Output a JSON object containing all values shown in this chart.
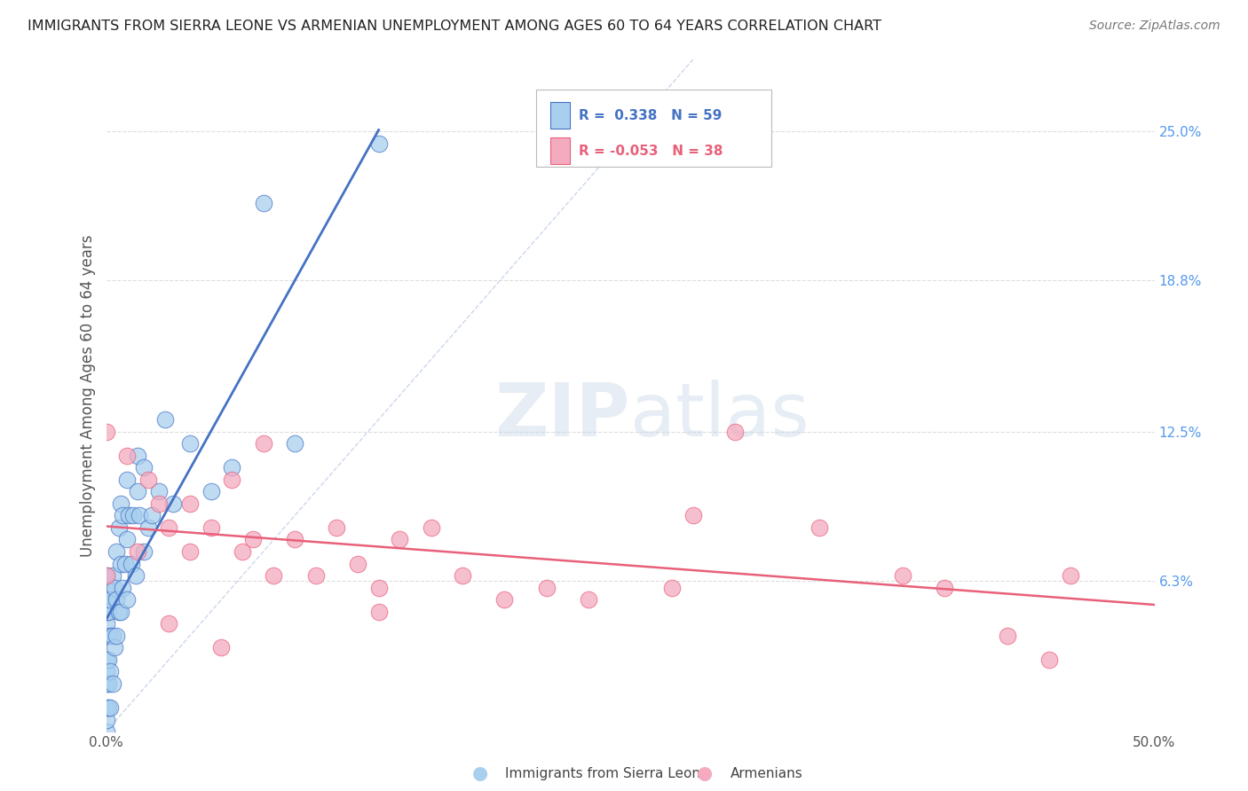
{
  "title": "IMMIGRANTS FROM SIERRA LEONE VS ARMENIAN UNEMPLOYMENT AMONG AGES 60 TO 64 YEARS CORRELATION CHART",
  "source": "Source: ZipAtlas.com",
  "ylabel": "Unemployment Among Ages 60 to 64 years",
  "xlim": [
    0.0,
    0.5
  ],
  "ylim": [
    0.0,
    0.28
  ],
  "right_yticks": [
    0.063,
    0.125,
    0.188,
    0.25
  ],
  "right_yticklabels": [
    "6.3%",
    "12.5%",
    "18.8%",
    "25.0%"
  ],
  "blue_color": "#A8CFEE",
  "pink_color": "#F4AABF",
  "blue_line_color": "#4472C4",
  "pink_line_color": "#E8607A",
  "blue_scatter_x": [
    0.0,
    0.0,
    0.0,
    0.0,
    0.0,
    0.0,
    0.0,
    0.0,
    0.0,
    0.0,
    0.0,
    0.0,
    0.001,
    0.001,
    0.001,
    0.001,
    0.002,
    0.002,
    0.002,
    0.002,
    0.003,
    0.003,
    0.003,
    0.004,
    0.004,
    0.005,
    0.005,
    0.005,
    0.006,
    0.006,
    0.007,
    0.007,
    0.007,
    0.008,
    0.008,
    0.009,
    0.01,
    0.01,
    0.01,
    0.011,
    0.012,
    0.013,
    0.014,
    0.015,
    0.015,
    0.016,
    0.018,
    0.018,
    0.02,
    0.022,
    0.025,
    0.028,
    0.032,
    0.04,
    0.05,
    0.06,
    0.075,
    0.09,
    0.13
  ],
  "blue_scatter_y": [
    0.0,
    0.005,
    0.01,
    0.02,
    0.025,
    0.03,
    0.04,
    0.045,
    0.05,
    0.055,
    0.06,
    0.065,
    0.01,
    0.02,
    0.03,
    0.05,
    0.01,
    0.025,
    0.04,
    0.055,
    0.02,
    0.04,
    0.065,
    0.035,
    0.06,
    0.04,
    0.055,
    0.075,
    0.05,
    0.085,
    0.05,
    0.07,
    0.095,
    0.06,
    0.09,
    0.07,
    0.055,
    0.08,
    0.105,
    0.09,
    0.07,
    0.09,
    0.065,
    0.1,
    0.115,
    0.09,
    0.075,
    0.11,
    0.085,
    0.09,
    0.1,
    0.13,
    0.095,
    0.12,
    0.1,
    0.11,
    0.22,
    0.12,
    0.245
  ],
  "pink_scatter_x": [
    0.0,
    0.0,
    0.01,
    0.015,
    0.02,
    0.025,
    0.03,
    0.03,
    0.04,
    0.04,
    0.05,
    0.055,
    0.06,
    0.065,
    0.07,
    0.075,
    0.08,
    0.09,
    0.1,
    0.11,
    0.12,
    0.13,
    0.14,
    0.155,
    0.17,
    0.19,
    0.21,
    0.23,
    0.27,
    0.3,
    0.34,
    0.38,
    0.4,
    0.43,
    0.46,
    0.13,
    0.28,
    0.45
  ],
  "pink_scatter_y": [
    0.125,
    0.065,
    0.115,
    0.075,
    0.105,
    0.095,
    0.085,
    0.045,
    0.095,
    0.075,
    0.085,
    0.035,
    0.105,
    0.075,
    0.08,
    0.12,
    0.065,
    0.08,
    0.065,
    0.085,
    0.07,
    0.06,
    0.08,
    0.085,
    0.065,
    0.055,
    0.06,
    0.055,
    0.06,
    0.125,
    0.085,
    0.065,
    0.06,
    0.04,
    0.065,
    0.05,
    0.09,
    0.03
  ],
  "background_color": "#FFFFFF",
  "grid_color": "#DDDDDD"
}
